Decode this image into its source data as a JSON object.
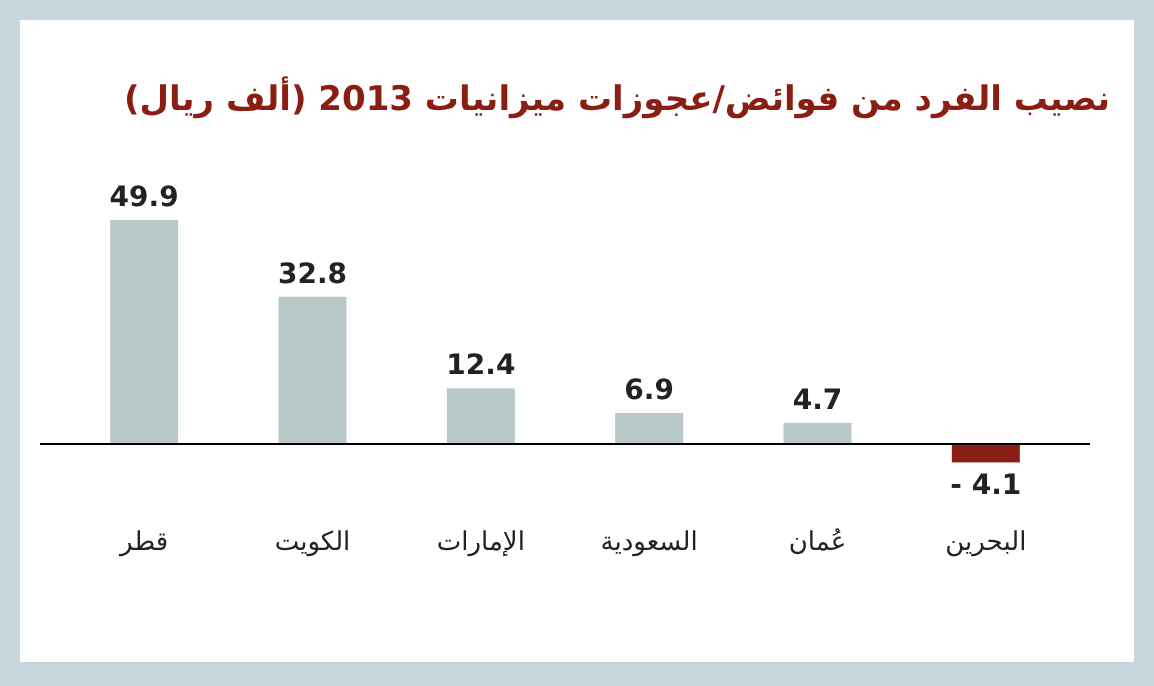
{
  "chart_data": {
    "type": "bar",
    "title": "نصيب الفرد من فوائض/عجوزات ميزانيات 2013 (ألف ريال)",
    "categories": [
      "قطر",
      "الكويت",
      "الإمارات",
      "السعودية",
      "عُمان",
      "البحرين"
    ],
    "values": [
      49.9,
      32.8,
      12.4,
      6.9,
      4.7,
      -4.1
    ],
    "colors": [
      "#b9c9c9",
      "#b9c9c9",
      "#b9c9c9",
      "#b9c9c9",
      "#b9c9c9",
      "#8b1e12"
    ],
    "value_labels": [
      "49.9",
      "32.8",
      "12.4",
      "6.9",
      "4.7",
      "- 4.1"
    ]
  }
}
